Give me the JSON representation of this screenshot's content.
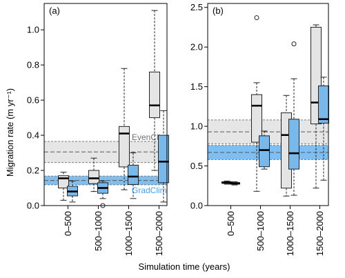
{
  "chart_data": [
    {
      "type": "box",
      "panel": "(a)",
      "ylim": [
        0,
        1.15
      ],
      "yticks": [
        0.0,
        0.2,
        0.4,
        0.6,
        0.8,
        1.0
      ],
      "ytick_labels": [
        "0.0",
        "0.2",
        "0.4",
        "0.6",
        "0.8",
        "1.0"
      ],
      "categories": [
        "0–500",
        "500–1000",
        "1000–1500",
        "1500–2000"
      ],
      "colors": {
        "even": "#e4e4e4",
        "grad": "#7ab8ea",
        "stroke": "#222222",
        "band_stroke": "#7a7a7a"
      },
      "bands": [
        {
          "label": "EvenClim",
          "low": 0.245,
          "high": 0.365,
          "median": 0.305,
          "color": "#dedede",
          "text_color": "#6f6f6f"
        },
        {
          "label": "GradClim",
          "low": 0.118,
          "high": 0.168,
          "median": 0.143,
          "color": "#69b3ee",
          "text_color": "#4aa0e6"
        }
      ],
      "series": [
        {
          "group": "EvenClim",
          "boxes": [
            {
              "whisker_low": 0.03,
              "q1": 0.1,
              "median": 0.155,
              "q3": 0.17,
              "whisker_high": 0.19,
              "outliers": []
            },
            {
              "whisker_low": 0.08,
              "q1": 0.125,
              "median": 0.155,
              "q3": 0.2,
              "whisker_high": 0.27,
              "outliers": []
            },
            {
              "whisker_low": 0.09,
              "q1": 0.22,
              "median": 0.41,
              "q3": 0.45,
              "whisker_high": 0.78,
              "outliers": []
            },
            {
              "whisker_low": 0.2,
              "q1": 0.5,
              "median": 0.57,
              "q3": 0.76,
              "whisker_high": 1.11,
              "outliers": []
            }
          ]
        },
        {
          "group": "GradClim",
          "boxes": [
            {
              "whisker_low": 0.02,
              "q1": 0.055,
              "median": 0.08,
              "q3": 0.11,
              "whisker_high": 0.14,
              "outliers": []
            },
            {
              "whisker_low": 0.04,
              "q1": 0.07,
              "median": 0.1,
              "q3": 0.13,
              "whisker_high": 0.14,
              "outliers": [
                0.0
              ]
            },
            {
              "whisker_low": 0.04,
              "q1": 0.12,
              "median": 0.165,
              "q3": 0.23,
              "whisker_high": 0.3,
              "outliers": []
            },
            {
              "whisker_low": 0.02,
              "q1": 0.13,
              "median": 0.25,
              "q3": 0.4,
              "whisker_high": 0.54,
              "outliers": []
            }
          ]
        }
      ]
    },
    {
      "type": "box",
      "panel": "(b)",
      "ylim": [
        0,
        2.55
      ],
      "yticks": [
        0.0,
        0.5,
        1.0,
        1.5,
        2.0,
        2.5
      ],
      "ytick_labels": [
        "0.0",
        "0.5",
        "1.0",
        "1.5",
        "2.0",
        "2.5"
      ],
      "categories": [
        "0–500",
        "500–1000",
        "1000–1500",
        "1500–2000"
      ],
      "colors": {
        "even": "#e4e4e4",
        "grad": "#7ab8ea",
        "stroke": "#222222",
        "band_stroke": "#7a7a7a"
      },
      "bands": [
        {
          "label": "",
          "low": 0.78,
          "high": 1.08,
          "median": 0.93,
          "color": "#dedede",
          "text_color": "#6f6f6f"
        },
        {
          "label": "",
          "low": 0.58,
          "high": 0.76,
          "median": 0.67,
          "color": "#69b3ee",
          "text_color": "#4aa0e6"
        }
      ],
      "series": [
        {
          "group": "EvenClim",
          "boxes": [
            {
              "whisker_low": 0.27,
              "q1": 0.28,
              "median": 0.29,
              "q3": 0.3,
              "whisker_high": 0.31,
              "outliers": []
            },
            {
              "whisker_low": 0.18,
              "q1": 0.8,
              "median": 1.26,
              "q3": 1.4,
              "whisker_high": 1.55,
              "outliers": [
                2.37
              ]
            },
            {
              "whisker_low": 0.12,
              "q1": 0.22,
              "median": 0.89,
              "q3": 1.17,
              "whisker_high": 1.39,
              "outliers": []
            },
            {
              "whisker_low": 0.22,
              "q1": 1.03,
              "median": 1.3,
              "q3": 2.25,
              "whisker_high": 2.28,
              "outliers": []
            }
          ]
        },
        {
          "group": "GradClim",
          "boxes": [
            {
              "whisker_low": 0.26,
              "q1": 0.27,
              "median": 0.28,
              "q3": 0.29,
              "whisker_high": 0.3,
              "outliers": []
            },
            {
              "whisker_low": 0.46,
              "q1": 0.49,
              "median": 0.7,
              "q3": 0.88,
              "whisker_high": 0.94,
              "outliers": []
            },
            {
              "whisker_low": 0.13,
              "q1": 0.46,
              "median": 0.66,
              "q3": 1.09,
              "whisker_high": 1.6,
              "outliers": [
                2.04
              ]
            },
            {
              "whisker_low": 0.32,
              "q1": 1.04,
              "median": 1.09,
              "q3": 1.51,
              "whisker_high": 1.62,
              "outliers": []
            }
          ]
        }
      ]
    }
  ],
  "ylabel": "Migration rate (m yr⁻¹)",
  "xlabel": "Simulation time (years)"
}
